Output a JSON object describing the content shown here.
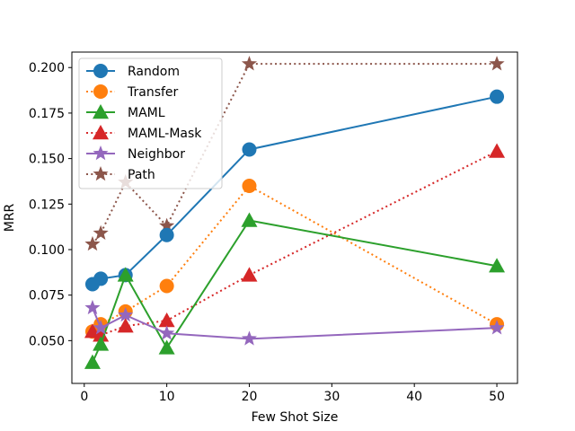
{
  "chart_data": {
    "type": "line",
    "xlabel": "Few Shot Size",
    "ylabel": "MRR",
    "xlim": [
      -1.5,
      52.5
    ],
    "ylim": [
      0.0265,
      0.2085
    ],
    "xticks": [
      0,
      10,
      20,
      30,
      40,
      50
    ],
    "xtick_labels": [
      "0",
      "10",
      "20",
      "30",
      "40",
      "50"
    ],
    "yticks": [
      0.05,
      0.075,
      0.1,
      0.125,
      0.15,
      0.175,
      0.2
    ],
    "ytick_labels": [
      "0.050",
      "0.075",
      "0.100",
      "0.125",
      "0.150",
      "0.175",
      "0.200"
    ],
    "grid": false,
    "legend_position": "upper-left",
    "x": [
      1,
      2,
      5,
      10,
      20,
      50
    ],
    "series": [
      {
        "name": "Random",
        "values": [
          0.081,
          0.084,
          0.086,
          0.108,
          0.155,
          0.184
        ],
        "color": "#1f77b4",
        "linestyle": "solid",
        "marker": "circle"
      },
      {
        "name": "Transfer",
        "values": [
          0.055,
          0.059,
          0.066,
          0.08,
          0.135,
          0.059
        ],
        "color": "#ff7f0e",
        "linestyle": "dotted",
        "marker": "circle"
      },
      {
        "name": "MAML",
        "values": [
          0.038,
          0.048,
          0.086,
          0.046,
          0.116,
          0.091
        ],
        "color": "#2ca02c",
        "linestyle": "solid",
        "marker": "triangle"
      },
      {
        "name": "MAML-Mask",
        "values": [
          0.055,
          0.053,
          0.058,
          0.061,
          0.086,
          0.154
        ],
        "color": "#d62728",
        "linestyle": "dotted",
        "marker": "triangle"
      },
      {
        "name": "Neighbor",
        "values": [
          0.068,
          0.057,
          0.064,
          0.054,
          0.051,
          0.057
        ],
        "color": "#9467bd",
        "linestyle": "solid",
        "marker": "star"
      },
      {
        "name": "Path",
        "values": [
          0.103,
          0.109,
          0.137,
          0.113,
          0.202,
          0.202
        ],
        "color": "#8c564b",
        "linestyle": "dotted",
        "marker": "star"
      }
    ]
  }
}
